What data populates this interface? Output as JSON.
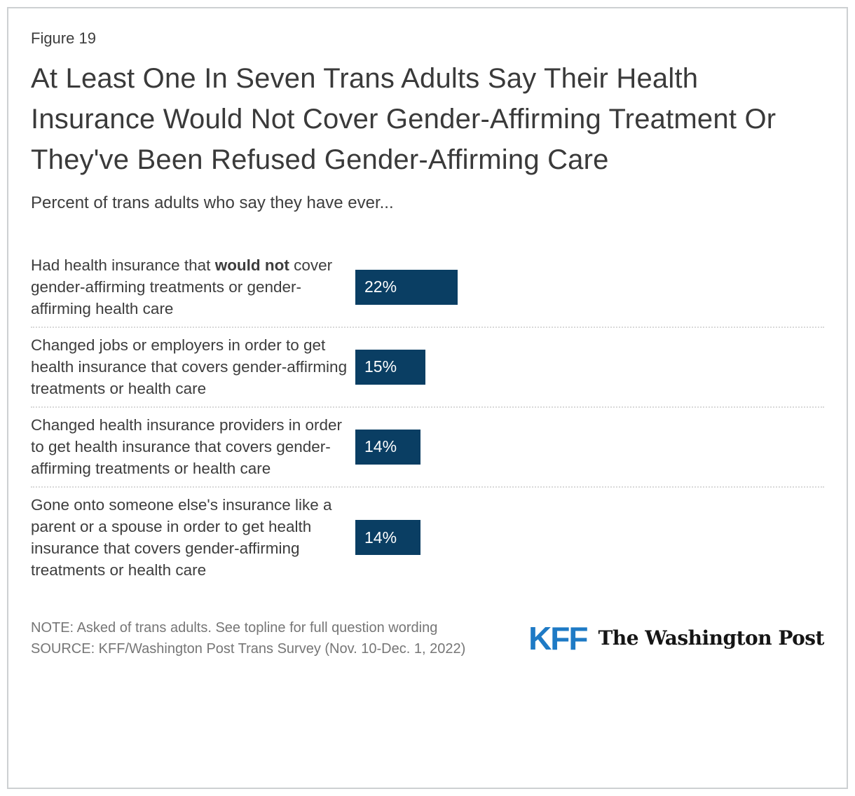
{
  "figure_label": "Figure 19",
  "title": "At Least One In Seven Trans Adults Say Their Health Insurance Would Not Cover Gender-Affirming Treatment Or They've Been Refused Gender-Affirming Care",
  "subtitle": "Percent of trans adults who say they have ever...",
  "chart_data": {
    "type": "bar",
    "orientation": "horizontal",
    "title": "At Least One In Seven Trans Adults Say Their Health Insurance Would Not Cover Gender-Affirming Treatment Or They've Been Refused Gender-Affirming Care",
    "subtitle": "Percent of trans adults who say they have ever...",
    "categories": [
      "Had health insurance that would not cover gender-affirming treatments or gender-affirming health care",
      "Changed jobs or employers in order to get health insurance that covers gender-affirming treatments or health care",
      "Changed health insurance providers in order to get health insurance that covers gender-affirming treatments or health care",
      "Gone onto someone else's insurance like a parent or a spouse in order to get health insurance that covers gender-affirming treatments or health care"
    ],
    "values": [
      22,
      15,
      14,
      14
    ],
    "data_labels": [
      "22%",
      "15%",
      "14%",
      "14%"
    ],
    "unit": "percent",
    "xlim": [
      0,
      100
    ],
    "grid": false,
    "legend": false,
    "bar_color": "#0A3E63"
  },
  "rows": [
    {
      "label_parts": [
        {
          "text": "Had health insurance that ",
          "bold": false
        },
        {
          "text": "would not",
          "bold": true
        },
        {
          "text": " cover gender-affirming treatments or gender-affirming health care",
          "bold": false
        }
      ],
      "value": 22,
      "value_label": "22%"
    },
    {
      "label_parts": [
        {
          "text": "Changed jobs or employers in order to get health insurance that covers gender-affirming treatments or health care",
          "bold": false
        }
      ],
      "value": 15,
      "value_label": "15%"
    },
    {
      "label_parts": [
        {
          "text": "Changed health insurance providers in order to get health insurance that covers gender-affirming treatments or health care",
          "bold": false
        }
      ],
      "value": 14,
      "value_label": "14%"
    },
    {
      "label_parts": [
        {
          "text": "Gone onto someone else's insurance like a parent or a spouse in order to get health insurance that covers gender-affirming treatments or health care",
          "bold": false
        }
      ],
      "value": 14,
      "value_label": "14%"
    }
  ],
  "footer": {
    "note": "NOTE: Asked of trans adults. See topline for full question wording",
    "source": "SOURCE: KFF/Washington Post Trans Survey (Nov. 10-Dec. 1, 2022)",
    "kff_logo_text": "KFF",
    "wapo_logo_text": "The Washington Post"
  },
  "colors": {
    "bar": "#0A3E63",
    "kff_blue": "#1E7AC5",
    "separator": "#d9d9d9",
    "note_gray": "#767676"
  }
}
